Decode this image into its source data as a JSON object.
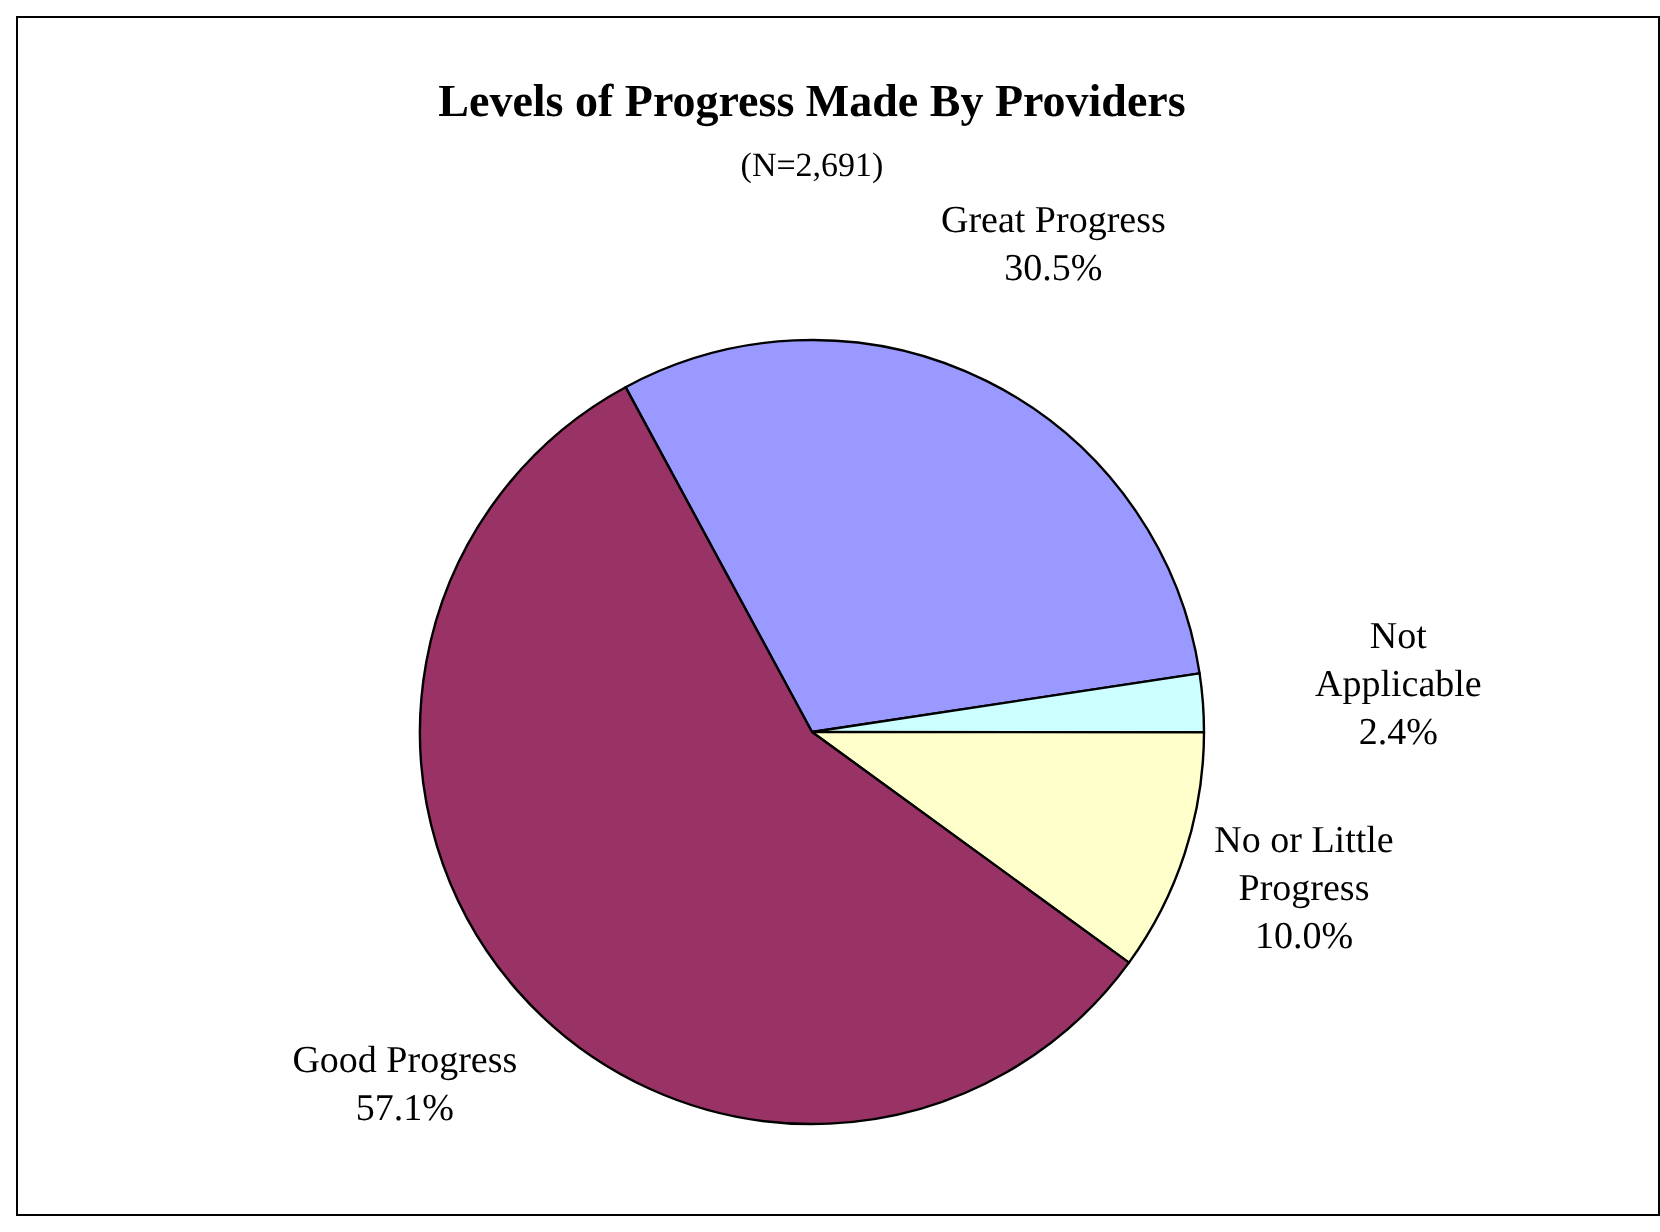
{
  "chart_data": {
    "type": "pie",
    "title": "Levels of Progress Made By Providers",
    "subtitle": "(N=2,691)",
    "categories": [
      "Great Progress",
      "Not Applicable",
      "No or Little Progress",
      "Good Progress"
    ],
    "values": [
      30.5,
      2.4,
      10.0,
      57.1
    ],
    "colors": [
      "#9999ff",
      "#ccffff",
      "#ffffcc",
      "#993366"
    ],
    "value_labels": [
      "30.5%",
      "2.4%",
      "10.0%",
      "57.1%"
    ]
  }
}
